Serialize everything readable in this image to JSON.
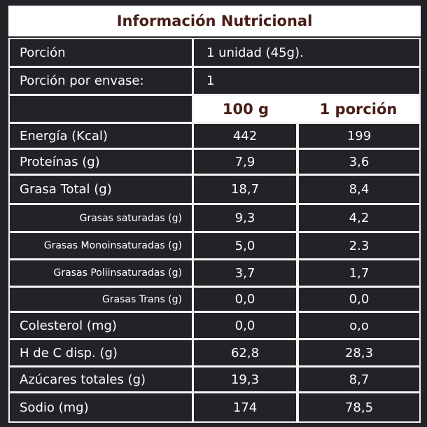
{
  "title": "Información Nutricional",
  "serving": {
    "label": "Porción",
    "value": "1 unidad (45g)."
  },
  "servings_per_container": {
    "label": "Porción por envase:",
    "value": "1"
  },
  "columns": {
    "per100": "100 g",
    "perServing": "1 porción"
  },
  "rows": [
    {
      "label": "Energía (Kcal)",
      "per100": "442",
      "perServing": "199",
      "sub": false
    },
    {
      "label": "Proteínas (g)",
      "per100": "7,9",
      "perServing": "3,6",
      "sub": false
    },
    {
      "label": "Grasa Total (g)",
      "per100": "18,7",
      "perServing": "8,4",
      "sub": false
    },
    {
      "label": "Grasas saturadas (g)",
      "per100": "9,3",
      "perServing": "4,2",
      "sub": true
    },
    {
      "label": "Grasas Monoinsaturadas (g)",
      "per100": "5,0",
      "perServing": "2.3",
      "sub": true
    },
    {
      "label": "Grasas Poliinsaturadas (g)",
      "per100": "3,7",
      "perServing": "1,7",
      "sub": true
    },
    {
      "label": "Grasas Trans (g)",
      "per100": "0,0",
      "perServing": "0,0",
      "sub": true
    },
    {
      "label": "Colesterol (mg)",
      "per100": "0,0",
      "perServing": "o,o",
      "sub": false
    },
    {
      "label": "H de C disp. (g)",
      "per100": "62,8",
      "perServing": "28,3",
      "sub": false
    },
    {
      "label": "Azúcares totales (g)",
      "per100": "19,3",
      "perServing": "8,7",
      "sub": false
    },
    {
      "label": "Sodio (mg)",
      "per100": "174",
      "perServing": "78,5",
      "sub": false
    }
  ],
  "colors": {
    "background": "#252227",
    "title_text": "#4a1c17",
    "grid_line": "#f3f3f3"
  }
}
